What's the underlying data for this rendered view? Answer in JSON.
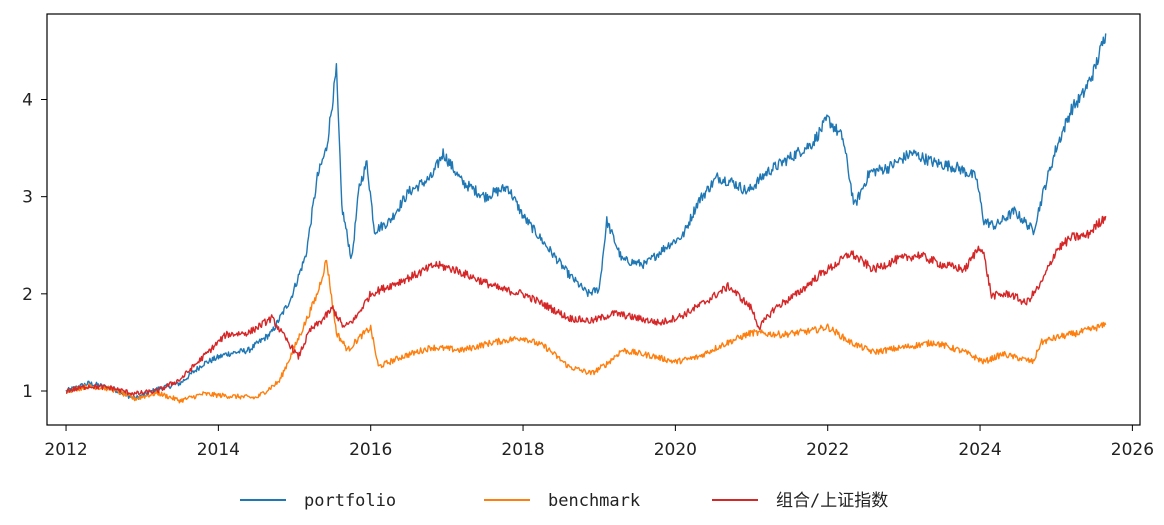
{
  "chart_data": {
    "type": "line",
    "title": "",
    "xlabel": "",
    "ylabel": "",
    "xlim": [
      2011.75,
      2026.1
    ],
    "ylim": [
      0.65,
      4.88
    ],
    "xticks": [
      "2012",
      "2014",
      "2016",
      "2018",
      "2020",
      "2022",
      "2024",
      "2026"
    ],
    "yticks": [
      "1",
      "2",
      "3",
      "4"
    ],
    "grid": false,
    "legend": {
      "placement": "bottom-center",
      "columns": 3
    },
    "series": [
      {
        "name": "portfolio",
        "color": "#1f77b4",
        "x": [
          2012.0,
          2012.3,
          2012.6,
          2012.9,
          2013.2,
          2013.5,
          2013.8,
          2014.1,
          2014.4,
          2014.7,
          2014.95,
          2015.15,
          2015.3,
          2015.42,
          2015.55,
          2015.62,
          2015.75,
          2015.85,
          2015.95,
          2016.05,
          2016.25,
          2016.5,
          2016.8,
          2016.95,
          2017.2,
          2017.5,
          2017.8,
          2018.0,
          2018.3,
          2018.6,
          2018.85,
          2019.0,
          2019.1,
          2019.3,
          2019.6,
          2019.9,
          2020.1,
          2020.3,
          2020.55,
          2020.75,
          2020.95,
          2021.2,
          2021.5,
          2021.8,
          2022.0,
          2022.2,
          2022.35,
          2022.55,
          2022.8,
          2023.1,
          2023.4,
          2023.7,
          2023.95,
          2024.05,
          2024.2,
          2024.45,
          2024.7,
          2024.85,
          2025.0,
          2025.2,
          2025.35,
          2025.5,
          2025.65
        ],
        "y": [
          1.0,
          1.08,
          1.03,
          0.92,
          1.02,
          1.08,
          1.28,
          1.38,
          1.42,
          1.6,
          1.95,
          2.4,
          3.2,
          3.5,
          4.3,
          2.9,
          2.35,
          3.1,
          3.35,
          2.65,
          2.75,
          3.05,
          3.2,
          3.45,
          3.15,
          3.0,
          3.1,
          2.8,
          2.5,
          2.2,
          2.0,
          2.05,
          2.75,
          2.35,
          2.3,
          2.5,
          2.6,
          2.95,
          3.2,
          3.15,
          3.05,
          3.25,
          3.4,
          3.55,
          3.8,
          3.6,
          2.9,
          3.25,
          3.3,
          3.45,
          3.35,
          3.3,
          3.2,
          2.75,
          2.7,
          2.85,
          2.65,
          3.1,
          3.5,
          3.9,
          4.05,
          4.3,
          4.68
        ]
      },
      {
        "name": "benchmark",
        "color": "#ff7f0e",
        "x": [
          2012.0,
          2012.3,
          2012.6,
          2012.9,
          2013.2,
          2013.5,
          2013.8,
          2014.1,
          2014.5,
          2014.8,
          2015.0,
          2015.15,
          2015.3,
          2015.42,
          2015.55,
          2015.7,
          2015.85,
          2016.0,
          2016.1,
          2016.4,
          2016.8,
          2017.2,
          2017.6,
          2018.0,
          2018.3,
          2018.6,
          2018.9,
          2019.1,
          2019.3,
          2019.7,
          2020.0,
          2020.3,
          2020.55,
          2020.75,
          2021.0,
          2021.4,
          2021.8,
          2022.0,
          2022.3,
          2022.6,
          2023.0,
          2023.4,
          2023.8,
          2024.05,
          2024.3,
          2024.7,
          2024.8,
          2025.0,
          2025.3,
          2025.65
        ],
        "y": [
          1.0,
          1.05,
          1.02,
          0.92,
          0.98,
          0.9,
          0.97,
          0.95,
          0.93,
          1.1,
          1.45,
          1.72,
          2.0,
          2.35,
          1.6,
          1.42,
          1.55,
          1.65,
          1.25,
          1.35,
          1.45,
          1.42,
          1.5,
          1.55,
          1.45,
          1.25,
          1.18,
          1.28,
          1.42,
          1.36,
          1.3,
          1.35,
          1.45,
          1.52,
          1.6,
          1.58,
          1.62,
          1.66,
          1.5,
          1.4,
          1.45,
          1.5,
          1.4,
          1.3,
          1.38,
          1.3,
          1.5,
          1.55,
          1.6,
          1.68
        ]
      },
      {
        "name": "组合/上证指数",
        "color": "#d62728",
        "x": [
          2012.0,
          2012.3,
          2012.6,
          2012.9,
          2013.2,
          2013.5,
          2013.8,
          2014.1,
          2014.4,
          2014.7,
          2014.9,
          2015.05,
          2015.2,
          2015.35,
          2015.5,
          2015.65,
          2015.8,
          2016.0,
          2016.3,
          2016.6,
          2016.85,
          2017.1,
          2017.4,
          2017.7,
          2018.0,
          2018.3,
          2018.6,
          2018.9,
          2019.2,
          2019.5,
          2019.8,
          2020.1,
          2020.4,
          2020.7,
          2021.0,
          2021.1,
          2021.3,
          2021.6,
          2021.9,
          2022.1,
          2022.3,
          2022.6,
          2022.9,
          2023.2,
          2023.5,
          2023.8,
          2024.0,
          2024.05,
          2024.15,
          2024.4,
          2024.6,
          2024.8,
          2025.0,
          2025.2,
          2025.4,
          2025.65
        ],
        "y": [
          1.0,
          1.05,
          1.03,
          0.97,
          1.0,
          1.12,
          1.35,
          1.58,
          1.6,
          1.75,
          1.52,
          1.35,
          1.62,
          1.72,
          1.85,
          1.65,
          1.75,
          2.0,
          2.1,
          2.2,
          2.3,
          2.25,
          2.15,
          2.05,
          2.0,
          1.88,
          1.75,
          1.72,
          1.8,
          1.75,
          1.7,
          1.78,
          1.92,
          2.08,
          1.85,
          1.65,
          1.85,
          2.0,
          2.2,
          2.3,
          2.42,
          2.25,
          2.35,
          2.4,
          2.3,
          2.25,
          2.5,
          2.4,
          1.98,
          2.0,
          1.9,
          2.1,
          2.45,
          2.58,
          2.6,
          2.8
        ]
      }
    ]
  }
}
